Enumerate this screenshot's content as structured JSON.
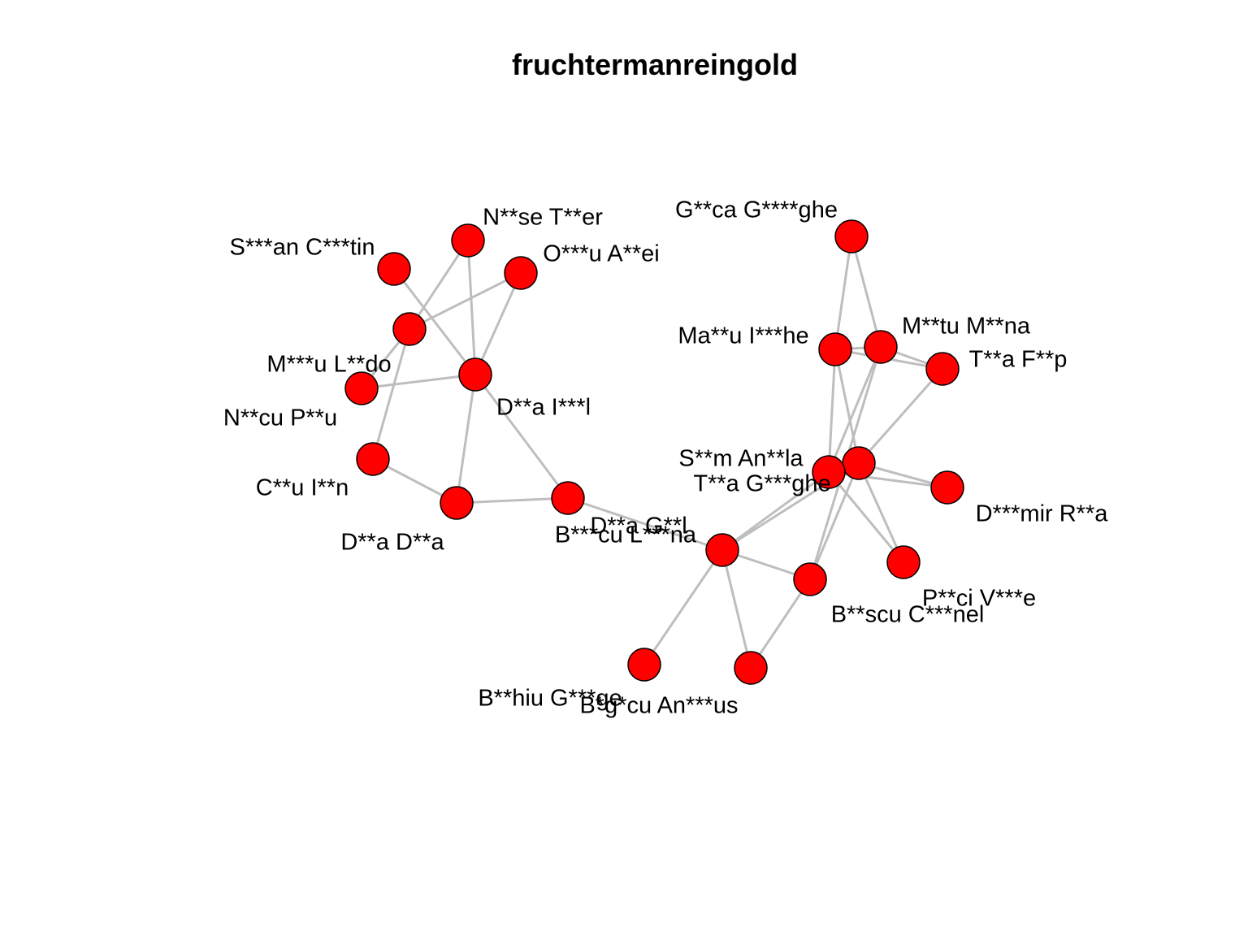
{
  "title": "fruchtermanreingold",
  "colors": {
    "node_fill": "#ff0000",
    "node_stroke": "#000000",
    "edge": "#bebebe",
    "background": "#ffffff"
  },
  "nodes": [
    {
      "id": "sc",
      "label": "S***an C***tin"
    },
    {
      "id": "nt",
      "label": "N**se T**er"
    },
    {
      "id": "oa",
      "label": "O***u A**ei"
    },
    {
      "id": "ml",
      "label": "M***u L**do"
    },
    {
      "id": "np",
      "label": "N**cu P**u"
    },
    {
      "id": "di",
      "label": "D**a I***l"
    },
    {
      "id": "ci",
      "label": "C**u I**n"
    },
    {
      "id": "dd",
      "label": "D**a D**a"
    },
    {
      "id": "dg",
      "label": "D**a G**l"
    },
    {
      "id": "bl",
      "label": "B***cu L***na"
    },
    {
      "id": "gg",
      "label": "G**ca G****ghe"
    },
    {
      "id": "mi",
      "label": "Ma**u I***he"
    },
    {
      "id": "mm",
      "label": "M**tu M**na"
    },
    {
      "id": "tf",
      "label": "T**a F**p"
    },
    {
      "id": "sa",
      "label": "S**m An**la"
    },
    {
      "id": "tg",
      "label": "T**a G***ghe"
    },
    {
      "id": "dr",
      "label": "D***mir R**a"
    },
    {
      "id": "pv",
      "label": "P**ci V***e"
    },
    {
      "id": "bc",
      "label": "B**scu C***nel"
    },
    {
      "id": "bg",
      "label": "B**hiu G***ge"
    },
    {
      "id": "ba",
      "label": "B*g*cu An***us"
    }
  ],
  "edges": [
    [
      "sc",
      "di"
    ],
    [
      "nt",
      "ml"
    ],
    [
      "nt",
      "di"
    ],
    [
      "oa",
      "ml"
    ],
    [
      "oa",
      "di"
    ],
    [
      "ml",
      "np"
    ],
    [
      "ml",
      "ci"
    ],
    [
      "np",
      "di"
    ],
    [
      "di",
      "dd"
    ],
    [
      "di",
      "dg"
    ],
    [
      "ci",
      "dd"
    ],
    [
      "dd",
      "dg"
    ],
    [
      "dg",
      "bl"
    ],
    [
      "bl",
      "tg"
    ],
    [
      "bl",
      "sa"
    ],
    [
      "bl",
      "bc"
    ],
    [
      "bl",
      "bg"
    ],
    [
      "bl",
      "ba"
    ],
    [
      "ba",
      "bc"
    ],
    [
      "bc",
      "sa"
    ],
    [
      "bc",
      "mm"
    ],
    [
      "gg",
      "mi"
    ],
    [
      "gg",
      "mm"
    ],
    [
      "mi",
      "mm"
    ],
    [
      "mi",
      "tf"
    ],
    [
      "mi",
      "tg"
    ],
    [
      "mi",
      "sa"
    ],
    [
      "mm",
      "tf"
    ],
    [
      "mm",
      "tg"
    ],
    [
      "tf",
      "sa"
    ],
    [
      "sa",
      "tg"
    ],
    [
      "sa",
      "dr"
    ],
    [
      "sa",
      "pv"
    ],
    [
      "tg",
      "dr"
    ],
    [
      "tg",
      "pv"
    ]
  ]
}
